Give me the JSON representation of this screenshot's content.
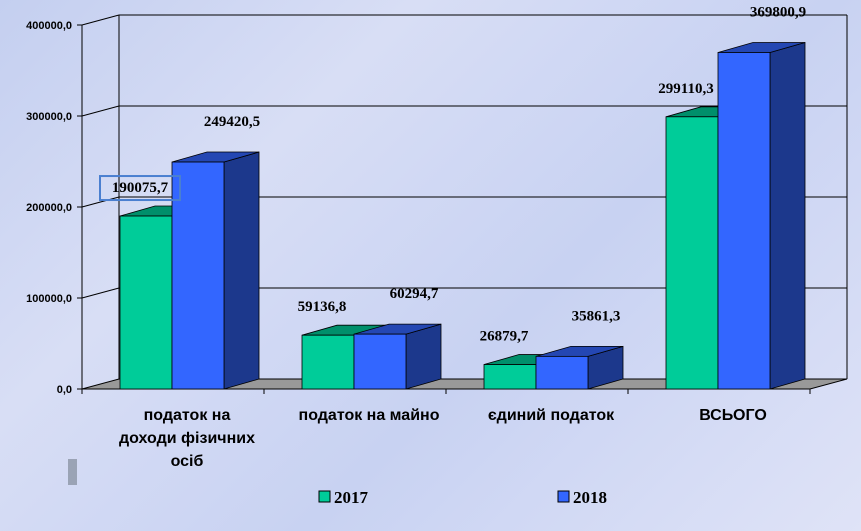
{
  "chart_data": {
    "type": "bar",
    "categories": [
      "податок на доходи фізичних осіб",
      "податок на майно",
      "єдиний податок",
      "ВСЬОГО"
    ],
    "category_lines": [
      [
        "податок на",
        "доходи фізичних",
        "осіб"
      ],
      [
        "податок на майно"
      ],
      [
        "єдиний податок"
      ],
      [
        "ВСЬОГО"
      ]
    ],
    "series": [
      {
        "name": "2017",
        "values": [
          190075.7,
          59136.8,
          26879.7,
          299110.3
        ],
        "labels": [
          "190075,7",
          "59136,8",
          "26879,7",
          "299110,3"
        ],
        "color": "#00cc99"
      },
      {
        "name": "2018",
        "values": [
          249420.5,
          60294.7,
          35861.3,
          369800.9
        ],
        "labels": [
          "249420,5",
          "60294,7",
          "35861,3",
          "369800,9"
        ],
        "color": "#3366ff"
      }
    ],
    "ylim": [
      0,
      400000
    ],
    "yticks": [
      0,
      100000,
      200000,
      300000,
      400000
    ],
    "ytick_labels": [
      "0,0",
      "100000,0",
      "200000,0",
      "300000,0",
      "400000,0"
    ],
    "grid": true,
    "legend_position": "bottom"
  }
}
